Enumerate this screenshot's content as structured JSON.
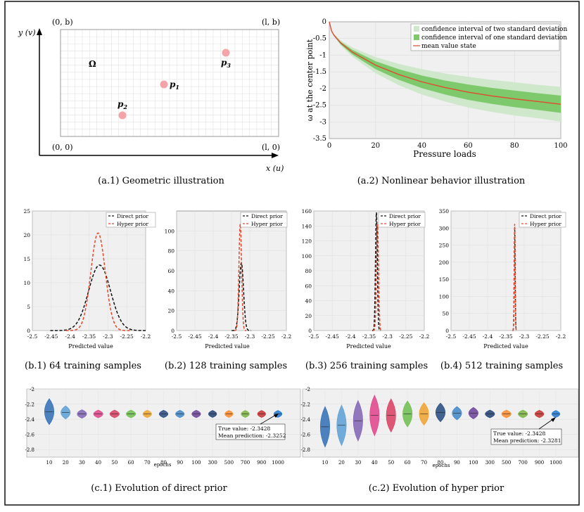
{
  "geometry": {
    "y_axis": "y (v)",
    "x_axis": "x (u)",
    "corners": [
      "(0, b)",
      "(l, b)",
      "(0, 0)",
      "(l, 0)"
    ],
    "domain": "Ω",
    "points": [
      {
        "name": "p1",
        "label": "p",
        "sub": "1",
        "color": "#f4a3a6"
      },
      {
        "name": "p2",
        "label": "p",
        "sub": "2",
        "color": "#f4a3a6"
      },
      {
        "name": "p3",
        "label": "p",
        "sub": "3",
        "color": "#f4a3a6"
      }
    ],
    "caption": "(a.1) Geometric illustration"
  },
  "nonlinear": {
    "caption": "(a.2) Nonlinear behavior illustration",
    "chart_data": {
      "type": "area",
      "xlabel": "Pressure loads",
      "ylabel": "ω at the center point",
      "xlim": [
        0,
        100
      ],
      "ylim": [
        -3.5,
        0
      ],
      "xticks": [
        0,
        20,
        40,
        60,
        80,
        100
      ],
      "yticks": [
        0,
        -0.5,
        -1,
        -1.5,
        -2,
        -2.5,
        -3,
        -3.5
      ],
      "x": [
        0,
        1,
        2,
        5,
        10,
        20,
        30,
        40,
        50,
        60,
        70,
        80,
        90,
        100
      ],
      "mean": [
        0,
        -0.28,
        -0.4,
        -0.64,
        -0.91,
        -1.3,
        -1.58,
        -1.8,
        -1.97,
        -2.11,
        -2.22,
        -2.31,
        -2.39,
        -2.47
      ],
      "one_sd": [
        0,
        0.01,
        0.02,
        0.04,
        0.07,
        0.12,
        0.16,
        0.19,
        0.21,
        0.23,
        0.24,
        0.25,
        0.25,
        0.26
      ],
      "two_sd": [
        0,
        0.02,
        0.04,
        0.08,
        0.14,
        0.24,
        0.32,
        0.38,
        0.42,
        0.46,
        0.48,
        0.5,
        0.5,
        0.52
      ],
      "legend": [
        {
          "label": "confidence interval of two standard deviation",
          "color": "#cfe8cc"
        },
        {
          "label": "confidence interval of one standard deviation",
          "color": "#7ec96c"
        },
        {
          "label": "mean value state",
          "color": "#e04a2f"
        }
      ],
      "legend_position": "top-right",
      "grid": true
    }
  },
  "densities": [
    {
      "caption": "(b.1) 64 training samples",
      "chart_data": {
        "type": "line",
        "xlabel": "Predicted value",
        "xlim": [
          -2.5,
          -2.2
        ],
        "ylim": [
          0,
          25
        ],
        "xticks": [
          -2.5,
          -2.45,
          -2.4,
          -2.35,
          -2.3,
          -2.25,
          -2.2
        ],
        "yticks": [
          0,
          5,
          10,
          15,
          20,
          25
        ],
        "series": [
          {
            "name": "Direct prior",
            "mean": -2.322,
            "sd": 0.029,
            "peak": 13.7,
            "color": "#111111"
          },
          {
            "name": "Hyper prior",
            "mean": -2.326,
            "sd": 0.019,
            "peak": 20.4,
            "color": "#e04a2f"
          }
        ],
        "legend_position": "top-right"
      }
    },
    {
      "caption": "(b.2) 128 training samples",
      "chart_data": {
        "type": "line",
        "xlabel": "Predicted value",
        "xlim": [
          -2.5,
          -2.2
        ],
        "ylim": [
          0,
          120
        ],
        "xticks": [
          -2.5,
          -2.45,
          -2.4,
          -2.35,
          -2.3,
          -2.25,
          -2.2
        ],
        "yticks": [
          0,
          20,
          40,
          60,
          80,
          100
        ],
        "series": [
          {
            "name": "Direct prior",
            "mean": -2.323,
            "sd": 0.0059,
            "peak": 68,
            "color": "#111111"
          },
          {
            "name": "Hyper prior",
            "mean": -2.326,
            "sd": 0.0037,
            "peak": 107,
            "color": "#e04a2f"
          }
        ],
        "legend_position": "top-right"
      }
    },
    {
      "caption": "(b.3) 256 training samples",
      "chart_data": {
        "type": "line",
        "xlabel": "Predicted value",
        "xlim": [
          -2.5,
          -2.2
        ],
        "ylim": [
          0,
          160
        ],
        "xticks": [
          -2.5,
          -2.45,
          -2.4,
          -2.35,
          -2.3,
          -2.25,
          -2.2
        ],
        "yticks": [
          0,
          20,
          40,
          60,
          80,
          100,
          120,
          140,
          160
        ],
        "series": [
          {
            "name": "Direct prior",
            "mean": -2.33,
            "sd": 0.0025,
            "peak": 158,
            "color": "#111111"
          },
          {
            "name": "Hyper prior",
            "mean": -2.327,
            "sd": 0.0028,
            "peak": 142,
            "color": "#e04a2f"
          }
        ],
        "legend_position": "top-right"
      }
    },
    {
      "caption": "(b.4) 512 training samples",
      "chart_data": {
        "type": "line",
        "xlabel": "Predicted value",
        "xlim": [
          -2.5,
          -2.2
        ],
        "ylim": [
          0,
          350
        ],
        "xticks": [
          -2.5,
          -2.45,
          -2.4,
          -2.35,
          -2.3,
          -2.25,
          -2.2
        ],
        "yticks": [
          0,
          50,
          100,
          150,
          200,
          250,
          300,
          350
        ],
        "series": [
          {
            "name": "Direct prior",
            "mean": -2.326,
            "sd": 0.0013,
            "peak": 300,
            "color": "#111111"
          },
          {
            "name": "Hyper prior",
            "mean": -2.326,
            "sd": 0.0013,
            "peak": 312,
            "color": "#e04a2f"
          }
        ],
        "legend_position": "top-right"
      }
    }
  ],
  "violins": [
    {
      "caption": "(c.1) Evolution of direct prior",
      "chart_data": {
        "type": "violin",
        "xlabel": "epochs",
        "categories": [
          "10",
          "20",
          "30",
          "40",
          "50",
          "60",
          "70",
          "80",
          "90",
          "100",
          "300",
          "500",
          "700",
          "900",
          "1000"
        ],
        "means": [
          -2.3,
          -2.31,
          -2.33,
          -2.33,
          -2.33,
          -2.33,
          -2.33,
          -2.33,
          -2.33,
          -2.33,
          -2.33,
          -2.33,
          -2.33,
          -2.33,
          -2.33
        ],
        "spreads": [
          0.06,
          0.025,
          0.012,
          0.01,
          0.01,
          0.01,
          0.009,
          0.009,
          0.009,
          0.009,
          0.008,
          0.008,
          0.008,
          0.008,
          0.008
        ],
        "ylim": [
          -2.9,
          -2.0
        ],
        "yticks": [
          -2,
          -2.2,
          -2.4,
          -2.6,
          -2.8
        ],
        "annotation": [
          "True value: -2.3428",
          "Mean prediction: -2.3252"
        ],
        "colors": [
          "#2f6db5",
          "#5a9fd6",
          "#8061b3",
          "#e0428a",
          "#d93d5e",
          "#6cbd4e",
          "#f0a22e",
          "#24497e",
          "#3e86c7",
          "#6b3f98",
          "#1e3f73",
          "#ff8a2a",
          "#7ab33f",
          "#c82f2f",
          "#1f77d0"
        ]
      }
    },
    {
      "caption": "(c.2) Evolution of hyper prior",
      "chart_data": {
        "type": "violin",
        "xlabel": "epochs",
        "categories": [
          "10",
          "20",
          "30",
          "40",
          "50",
          "60",
          "70",
          "80",
          "90",
          "100",
          "300",
          "500",
          "700",
          "900",
          "1000"
        ],
        "means": [
          -2.5,
          -2.48,
          -2.42,
          -2.35,
          -2.35,
          -2.33,
          -2.33,
          -2.31,
          -2.32,
          -2.32,
          -2.33,
          -2.33,
          -2.33,
          -2.33,
          -2.33
        ],
        "spreads": [
          0.1,
          0.1,
          0.1,
          0.1,
          0.08,
          0.06,
          0.05,
          0.04,
          0.025,
          0.02,
          0.01,
          0.01,
          0.01,
          0.009,
          0.008
        ],
        "ylim": [
          -2.9,
          -2.0
        ],
        "yticks": [
          -2,
          -2.2,
          -2.4,
          -2.6,
          -2.8
        ],
        "annotation": [
          "True value: -2.3428",
          "Mean prediction: -2.3281"
        ],
        "colors": [
          "#2f6db5",
          "#5a9fd6",
          "#8061b3",
          "#e0428a",
          "#d93d5e",
          "#6cbd4e",
          "#f0a22e",
          "#24497e",
          "#3e86c7",
          "#6b3f98",
          "#1e3f73",
          "#ff8a2a",
          "#7ab33f",
          "#c82f2f",
          "#1f77d0"
        ]
      }
    }
  ]
}
